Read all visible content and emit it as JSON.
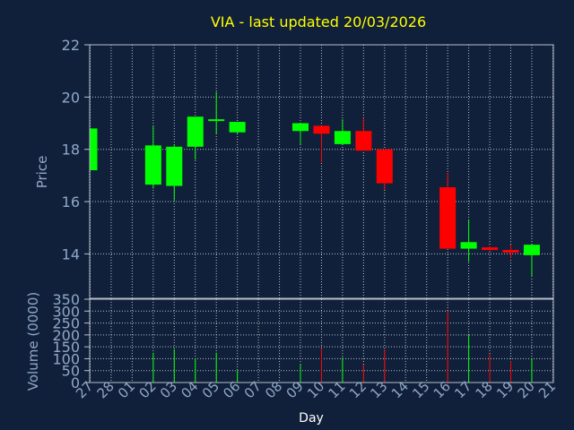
{
  "chart_data": [
    {
      "type": "candlestick",
      "title": "VIA - last updated 20/03/2026",
      "ylabel": "Price",
      "ylim": [
        12.3,
        22
      ],
      "yticks": [
        14,
        16,
        18,
        20,
        22
      ],
      "x_labels": [
        "27",
        "28",
        "01",
        "02",
        "03",
        "04",
        "05",
        "06",
        "07",
        "08",
        "09",
        "10",
        "11",
        "12",
        "13",
        "14",
        "15",
        "16",
        "17",
        "18",
        "19",
        "20",
        "21"
      ],
      "candles": [
        {
          "x": 0,
          "open": 17.2,
          "close": 18.8,
          "high": 18.8,
          "low": 17.2
        },
        {
          "x": 3,
          "open": 16.65,
          "close": 18.15,
          "high": 18.9,
          "low": 16.5
        },
        {
          "x": 4,
          "open": 16.6,
          "close": 18.1,
          "high": 18.2,
          "low": 16.05
        },
        {
          "x": 5,
          "open": 18.1,
          "close": 19.25,
          "high": 19.25,
          "low": 17.6
        },
        {
          "x": 6,
          "open": 19.12,
          "close": 19.15,
          "high": 20.2,
          "low": 18.6
        },
        {
          "x": 7,
          "open": 18.65,
          "close": 19.05,
          "high": 19.05,
          "low": 18.6
        },
        {
          "x": 10,
          "open": 18.7,
          "close": 19.0,
          "high": 19.0,
          "low": 18.2
        },
        {
          "x": 11,
          "open": 18.9,
          "close": 18.6,
          "high": 18.9,
          "low": 17.5
        },
        {
          "x": 12,
          "open": 18.2,
          "close": 18.7,
          "high": 19.15,
          "low": 18.2
        },
        {
          "x": 13,
          "open": 18.7,
          "close": 17.95,
          "high": 19.2,
          "low": 17.95
        },
        {
          "x": 14,
          "open": 18.0,
          "close": 16.7,
          "high": 18.0,
          "low": 16.45
        },
        {
          "x": 17,
          "open": 16.55,
          "close": 14.2,
          "high": 17.1,
          "low": 14.2
        },
        {
          "x": 18,
          "open": 14.2,
          "close": 14.45,
          "high": 15.3,
          "low": 13.7
        },
        {
          "x": 19,
          "open": 14.25,
          "close": 14.15,
          "high": 14.3,
          "low": 14.1
        },
        {
          "x": 20,
          "open": 14.15,
          "close": 14.05,
          "high": 14.35,
          "low": 13.85
        },
        {
          "x": 21,
          "open": 13.95,
          "close": 14.35,
          "high": 14.35,
          "low": 13.15
        }
      ]
    },
    {
      "type": "bar",
      "ylabel": "Volume (0000)",
      "xlabel": "Day",
      "ylim": [
        0,
        350
      ],
      "yticks": [
        0,
        50,
        100,
        150,
        200,
        250,
        300,
        350
      ],
      "x_labels": [
        "27",
        "28",
        "01",
        "02",
        "03",
        "04",
        "05",
        "06",
        "07",
        "08",
        "09",
        "10",
        "11",
        "12",
        "13",
        "14",
        "15",
        "16",
        "17",
        "18",
        "19",
        "20",
        "21"
      ],
      "bars": [
        {
          "x": 3,
          "value": 125,
          "direction": "up"
        },
        {
          "x": 4,
          "value": 140,
          "direction": "up"
        },
        {
          "x": 5,
          "value": 100,
          "direction": "up"
        },
        {
          "x": 6,
          "value": 125,
          "direction": "up"
        },
        {
          "x": 7,
          "value": 50,
          "direction": "up"
        },
        {
          "x": 10,
          "value": 75,
          "direction": "up"
        },
        {
          "x": 11,
          "value": 145,
          "direction": "down"
        },
        {
          "x": 12,
          "value": 105,
          "direction": "up"
        },
        {
          "x": 13,
          "value": 75,
          "direction": "down"
        },
        {
          "x": 14,
          "value": 140,
          "direction": "down"
        },
        {
          "x": 17,
          "value": 300,
          "direction": "down"
        },
        {
          "x": 18,
          "value": 200,
          "direction": "up"
        },
        {
          "x": 19,
          "value": 120,
          "direction": "down"
        },
        {
          "x": 20,
          "value": 90,
          "direction": "down"
        },
        {
          "x": 21,
          "value": 100,
          "direction": "up"
        }
      ]
    }
  ],
  "colors": {
    "background": "#11203a",
    "plot_background": "#11203a",
    "up": "#00ff00",
    "down": "#ff0000",
    "grid": "#b8bec8",
    "axis_text": "#8fa8c8",
    "title_text": "#ffff00",
    "xlabel_text": "#ffffff"
  }
}
